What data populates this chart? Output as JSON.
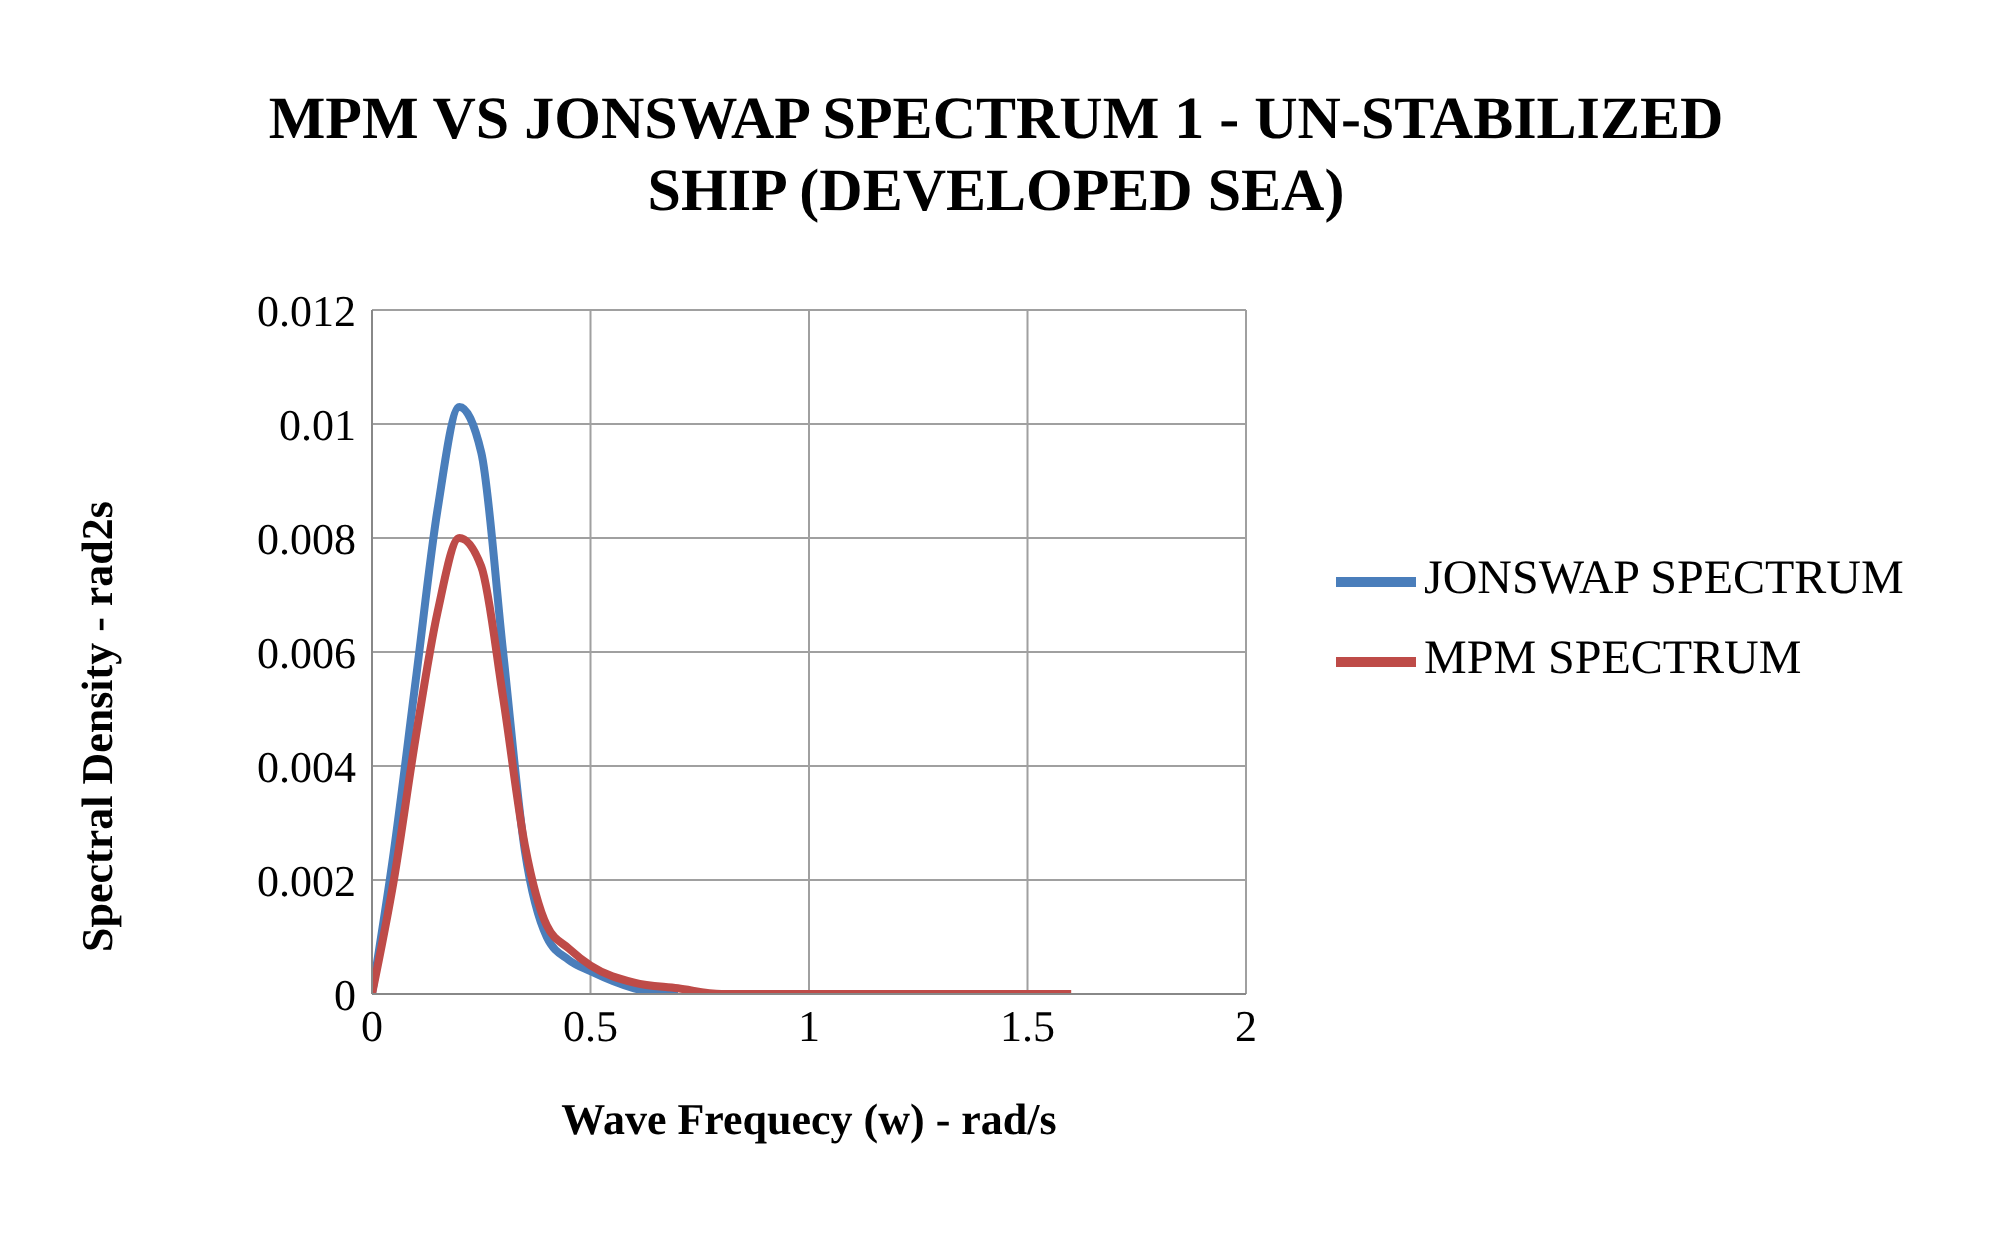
{
  "chart_data": {
    "type": "line",
    "title": "MPM VS JONSWAP SPECTRUM 1 - UN-STABILIZED SHIP (DEVELOPED SEA)",
    "xlabel": "Wave Frequecy (w) - rad/s",
    "ylabel": "Spectral Density - rad2s",
    "x": [
      0,
      0.05,
      0.1,
      0.15,
      0.2,
      0.25,
      0.3,
      0.35,
      0.4,
      0.45,
      0.5,
      0.6,
      0.7,
      0.8,
      1.0,
      1.2,
      1.4,
      1.6
    ],
    "series": [
      {
        "name": "JONSWAP SPECTRUM",
        "color": "#4a7ebb",
        "values": [
          0,
          0.0025,
          0.0055,
          0.0085,
          0.0103,
          0.0095,
          0.006,
          0.0025,
          0.001,
          0.0006,
          0.0004,
          0.0001,
          0,
          null,
          null,
          null,
          null,
          null
        ]
      },
      {
        "name": "MPM SPECTRUM",
        "color": "#be4b48",
        "values": [
          0,
          0.002,
          0.0045,
          0.0067,
          0.008,
          0.0075,
          0.0052,
          0.0026,
          0.0012,
          0.0008,
          0.0005,
          0.0002,
          0.0001,
          0,
          0,
          0,
          0,
          0
        ]
      }
    ],
    "xlim": [
      0,
      2
    ],
    "xticks": [
      0,
      0.5,
      1,
      1.5,
      2
    ],
    "ylim": [
      0,
      0.012
    ],
    "yticks": [
      0,
      0.002,
      0.004,
      0.006,
      0.008,
      0.01,
      0.012
    ],
    "grid": true,
    "legend": "right",
    "marker": "none",
    "line_style": "solid"
  }
}
